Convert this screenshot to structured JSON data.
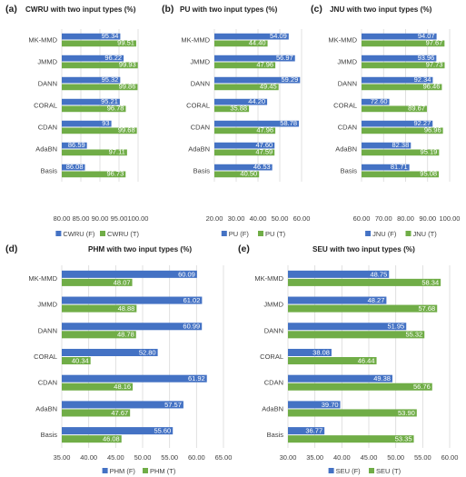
{
  "colors": {
    "F": "#4472C4",
    "T": "#70AD47",
    "grid": "#D9D9D9",
    "text": "#404040"
  },
  "chart_data": [
    {
      "panel_label": "(a)",
      "type": "bar",
      "orientation": "horizontal",
      "title": "CWRU with two input types (%)",
      "categories": [
        "MK-MMD",
        "JMMD",
        "DANN",
        "CORAL",
        "CDAN",
        "AdaBN",
        "Basis"
      ],
      "series": [
        {
          "name": "CWRU (F)",
          "values": [
            95.34,
            96.22,
            95.32,
            95.21,
            93,
            86.59,
            86.08
          ],
          "labels": [
            "95.34",
            "96.22",
            "95.32",
            "95.21",
            "93",
            "86.59",
            "86.08"
          ]
        },
        {
          "name": "CWRU (T)",
          "values": [
            99.51,
            99.93,
            99.86,
            96.78,
            99.68,
            97.11,
            96.73
          ],
          "labels": [
            "99.51",
            "99.93",
            "99.86",
            "96.78",
            "99.68",
            "97.11",
            "96.73"
          ]
        }
      ],
      "xlim": [
        80,
        100
      ],
      "xticks": [
        "80.00",
        "85.00",
        "90.00",
        "95.00",
        "100.00"
      ],
      "grid": true,
      "legend": "bottom"
    },
    {
      "panel_label": "(b)",
      "type": "bar",
      "orientation": "horizontal",
      "title": "PU with two input types (%)",
      "categories": [
        "MK-MMD",
        "JMMD",
        "DANN",
        "CORAL",
        "CDAN",
        "AdaBN",
        "Basis"
      ],
      "series": [
        {
          "name": "PU (F)",
          "values": [
            54.09,
            56.97,
            59.29,
            44.2,
            58.78,
            47.6,
            46.53
          ],
          "labels": [
            "54.09",
            "56.97",
            "59.29",
            "44.20",
            "58.78",
            "47.60",
            "46.53"
          ]
        },
        {
          "name": "PU (T)",
          "values": [
            44.4,
            47.96,
            49.45,
            35.88,
            47.96,
            47.59,
            40.5
          ],
          "labels": [
            "44.40",
            "47.96",
            "49.45",
            "35.88",
            "47.96",
            "47.59",
            "40.50"
          ]
        }
      ],
      "xlim": [
        20,
        60
      ],
      "xticks": [
        "20.00",
        "30.00",
        "40.00",
        "50.00",
        "60.00"
      ],
      "grid": true,
      "legend": "bottom"
    },
    {
      "panel_label": "(c)",
      "type": "bar",
      "orientation": "horizontal",
      "title": "JNU with two input types (%)",
      "categories": [
        "MK-MMD",
        "JMMD",
        "DANN",
        "CORAL",
        "CDAN",
        "AdaBN",
        "Basis"
      ],
      "series": [
        {
          "name": "JNU (F)",
          "values": [
            94.07,
            93.96,
            92.34,
            72.6,
            92.27,
            82.38,
            81.71
          ],
          "labels": [
            "94.07",
            "93.96",
            "92.34",
            "72.60",
            "92.27",
            "82.38",
            "81.71"
          ]
        },
        {
          "name": "JNU (T)",
          "values": [
            97.67,
            97.73,
            96.46,
            89.67,
            96.96,
            95.19,
            95.08
          ],
          "labels": [
            "97.67",
            "97.73",
            "96.46",
            "89.67",
            "96.96",
            "95.19",
            "95.08"
          ]
        }
      ],
      "xlim": [
        60,
        100
      ],
      "xticks": [
        "60.00",
        "70.00",
        "80.00",
        "90.00",
        "100.00"
      ],
      "grid": true,
      "legend": "bottom"
    },
    {
      "panel_label": "(d)",
      "type": "bar",
      "orientation": "horizontal",
      "title": "PHM with two input types (%)",
      "categories": [
        "MK-MMD",
        "JMMD",
        "DANN",
        "CORAL",
        "CDAN",
        "AdaBN",
        "Basis"
      ],
      "series": [
        {
          "name": "PHM (F)",
          "values": [
            60.09,
            61.02,
            60.99,
            52.8,
            61.92,
            57.57,
            55.6
          ],
          "labels": [
            "60.09",
            "61.02",
            "60.99",
            "52.80",
            "61.92",
            "57.57",
            "55.60"
          ]
        },
        {
          "name": "PHM (T)",
          "values": [
            48.07,
            48.88,
            48.78,
            40.34,
            48.16,
            47.67,
            46.08
          ],
          "labels": [
            "48.07",
            "48.88",
            "48.78",
            "40.34",
            "48.16",
            "47.67",
            "46.08"
          ]
        }
      ],
      "xlim": [
        35,
        65
      ],
      "xticks": [
        "35.00",
        "40.00",
        "45.00",
        "50.00",
        "55.00",
        "60.00",
        "65.00"
      ],
      "grid": true,
      "legend": "bottom"
    },
    {
      "panel_label": "(e)",
      "type": "bar",
      "orientation": "horizontal",
      "title": "SEU with two input types (%)",
      "categories": [
        "MK-MMD",
        "JMMD",
        "DANN",
        "CORAL",
        "CDAN",
        "AdaBN",
        "Basis"
      ],
      "series": [
        {
          "name": "SEU (F)",
          "values": [
            48.75,
            48.27,
            51.95,
            38.08,
            49.38,
            39.7,
            36.77
          ],
          "labels": [
            "48.75",
            "48.27",
            "51.95",
            "38.08",
            "49.38",
            "39.70",
            "36.77"
          ]
        },
        {
          "name": "SEU (T)",
          "values": [
            58.34,
            57.68,
            55.32,
            46.44,
            56.76,
            53.9,
            53.35
          ],
          "labels": [
            "58.34",
            "57.68",
            "55.32",
            "46.44",
            "56.76",
            "53.90",
            "53.35"
          ]
        }
      ],
      "xlim": [
        30,
        60
      ],
      "xticks": [
        "30.00",
        "35.00",
        "40.00",
        "45.00",
        "50.00",
        "55.00",
        "60.00"
      ],
      "grid": true,
      "legend": "bottom"
    }
  ]
}
